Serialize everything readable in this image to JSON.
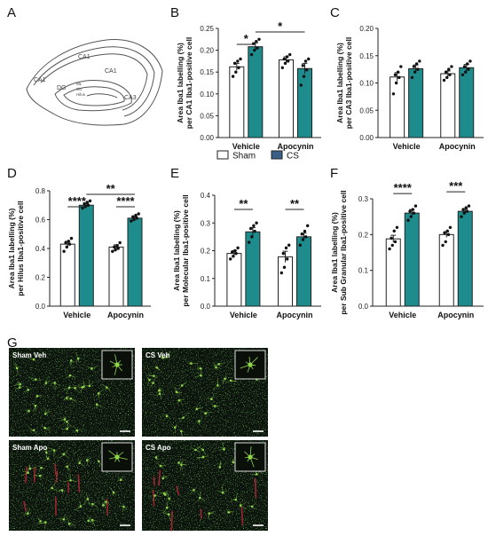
{
  "colors": {
    "sham": "#ffffff",
    "cs": "#1e8c8c",
    "axis": "#222222",
    "panel_bg": "#0c120c",
    "microglia": "#8fd64a",
    "vessel": "#b3263a"
  },
  "panel_letters": [
    "A",
    "B",
    "C",
    "D",
    "E",
    "F",
    "G"
  ],
  "hippocampus_labels": [
    "CA1",
    "CA1",
    "CA1",
    "CA3",
    "DG",
    "ML",
    "SG",
    "Hilus"
  ],
  "legend": {
    "sham": "Sham",
    "cs": "CS"
  },
  "micrograph_labels": [
    "Sham Veh",
    "CS Veh",
    "Sham Apo",
    "CS Apo"
  ],
  "chart_data": [
    {
      "panel": "B",
      "type": "bar",
      "categories": [
        "Vehicle",
        "Apocynin"
      ],
      "ylabel": "Area Iba1 labelling (%) per CA1 Iba1-positive cell",
      "ylim": [
        0,
        0.25
      ],
      "yticks": [
        "0.00",
        "0.05",
        "0.10",
        "0.15",
        "0.20",
        "0.25"
      ],
      "series": [
        {
          "name": "Sham",
          "values": [
            0.162,
            0.178
          ],
          "errors": [
            0.008,
            0.007
          ],
          "points": [
            [
              0.14,
              0.15,
              0.16,
              0.17,
              0.175,
              0.18
            ],
            [
              0.16,
              0.17,
              0.175,
              0.18,
              0.185,
              0.19
            ]
          ]
        },
        {
          "name": "CS",
          "values": [
            0.208,
            0.158
          ],
          "errors": [
            0.009,
            0.012
          ],
          "points": [
            [
              0.19,
              0.2,
              0.205,
              0.215,
              0.22,
              0.225
            ],
            [
              0.12,
              0.14,
              0.155,
              0.165,
              0.175,
              0.18
            ]
          ]
        }
      ],
      "annotations": [
        {
          "text": "*",
          "from": [
            0,
            0
          ],
          "to": [
            0,
            1
          ]
        },
        {
          "text": "*",
          "from": [
            0,
            1
          ],
          "to": [
            1,
            1
          ]
        }
      ]
    },
    {
      "panel": "C",
      "type": "bar",
      "categories": [
        "Vehicle",
        "Apocynin"
      ],
      "ylabel": "Area Iba1 labelling (%) per CA3 Iba1-positive cell",
      "ylim": [
        0,
        0.2
      ],
      "yticks": [
        "0.00",
        "0.05",
        "0.10",
        "0.15",
        "0.20"
      ],
      "series": [
        {
          "name": "Sham",
          "values": [
            0.111,
            0.117
          ],
          "errors": [
            0.008,
            0.005
          ],
          "points": [
            [
              0.08,
              0.1,
              0.11,
              0.115,
              0.12,
              0.13
            ],
            [
              0.105,
              0.11,
              0.115,
              0.12,
              0.125,
              0.13
            ]
          ]
        },
        {
          "name": "CS",
          "values": [
            0.126,
            0.128
          ],
          "errors": [
            0.007,
            0.006
          ],
          "points": [
            [
              0.11,
              0.12,
              0.125,
              0.13,
              0.135,
              0.14
            ],
            [
              0.115,
              0.12,
              0.125,
              0.13,
              0.135,
              0.14
            ]
          ]
        }
      ],
      "annotations": []
    },
    {
      "panel": "D",
      "type": "bar",
      "categories": [
        "Vehicle",
        "Apocynin"
      ],
      "ylabel": "Area Iba1 labelling (%) per Hilus Iba1-positive cell",
      "ylim": [
        0,
        0.8
      ],
      "yticks": [
        "0.0",
        "0.2",
        "0.4",
        "0.6",
        "0.8"
      ],
      "series": [
        {
          "name": "Sham",
          "values": [
            0.43,
            0.41
          ],
          "errors": [
            0.02,
            0.015
          ],
          "points": [
            [
              0.38,
              0.41,
              0.43,
              0.44,
              0.45,
              0.47
            ],
            [
              0.38,
              0.39,
              0.4,
              0.41,
              0.42,
              0.44
            ]
          ]
        },
        {
          "name": "CS",
          "values": [
            0.7,
            0.61
          ],
          "errors": [
            0.012,
            0.01
          ],
          "points": [
            [
              0.68,
              0.69,
              0.7,
              0.71,
              0.72,
              0.73
            ],
            [
              0.59,
              0.6,
              0.61,
              0.62,
              0.63,
              0.64
            ]
          ]
        }
      ],
      "annotations": [
        {
          "text": "****",
          "from": [
            0,
            0
          ],
          "to": [
            0,
            1
          ]
        },
        {
          "text": "**",
          "from": [
            0,
            1
          ],
          "to": [
            1,
            1
          ]
        },
        {
          "text": "****",
          "from": [
            1,
            0
          ],
          "to": [
            1,
            1
          ]
        }
      ]
    },
    {
      "panel": "E",
      "type": "bar",
      "categories": [
        "Vehicle",
        "Apocynin"
      ],
      "ylabel": "Area Iba1 labelling (%) per Molecular Iba1-positive cell",
      "ylim": [
        0,
        0.4
      ],
      "yticks": [
        "0.0",
        "0.1",
        "0.2",
        "0.3",
        "0.4"
      ],
      "series": [
        {
          "name": "Sham",
          "values": [
            0.19,
            0.178
          ],
          "errors": [
            0.01,
            0.02
          ],
          "points": [
            [
              0.17,
              0.18,
              0.19,
              0.195,
              0.2,
              0.21
            ],
            [
              0.12,
              0.14,
              0.17,
              0.19,
              0.21,
              0.22
            ]
          ]
        },
        {
          "name": "CS",
          "values": [
            0.268,
            0.25
          ],
          "errors": [
            0.015,
            0.013
          ],
          "points": [
            [
              0.23,
              0.25,
              0.27,
              0.28,
              0.29,
              0.3
            ],
            [
              0.22,
              0.24,
              0.25,
              0.26,
              0.27,
              0.29
            ]
          ]
        }
      ],
      "annotations": [
        {
          "text": "**",
          "from": [
            0,
            0
          ],
          "to": [
            0,
            1
          ]
        },
        {
          "text": "**",
          "from": [
            1,
            0
          ],
          "to": [
            1,
            1
          ]
        }
      ]
    },
    {
      "panel": "F",
      "type": "bar",
      "categories": [
        "Vehicle",
        "Apocynin"
      ],
      "ylabel": "Area Iba1 labelling (%) per Sub Granular Iba1-positive cell",
      "ylim": [
        0,
        0.3
      ],
      "yticks": [
        "0.0",
        "0.1",
        "0.2",
        "0.3"
      ],
      "series": [
        {
          "name": "Sham",
          "values": [
            0.188,
            0.2
          ],
          "errors": [
            0.01,
            0.008
          ],
          "points": [
            [
              0.16,
              0.17,
              0.18,
              0.19,
              0.21,
              0.22
            ],
            [
              0.17,
              0.18,
              0.2,
              0.205,
              0.21,
              0.22
            ]
          ]
        },
        {
          "name": "CS",
          "values": [
            0.26,
            0.265
          ],
          "errors": [
            0.01,
            0.006
          ],
          "points": [
            [
              0.24,
              0.25,
              0.26,
              0.265,
              0.27,
              0.28
            ],
            [
              0.25,
              0.26,
              0.265,
              0.27,
              0.275,
              0.28
            ]
          ]
        }
      ],
      "annotations": [
        {
          "text": "****",
          "from": [
            0,
            0
          ],
          "to": [
            0,
            1
          ]
        },
        {
          "text": "***",
          "from": [
            1,
            0
          ],
          "to": [
            1,
            1
          ]
        }
      ]
    }
  ]
}
